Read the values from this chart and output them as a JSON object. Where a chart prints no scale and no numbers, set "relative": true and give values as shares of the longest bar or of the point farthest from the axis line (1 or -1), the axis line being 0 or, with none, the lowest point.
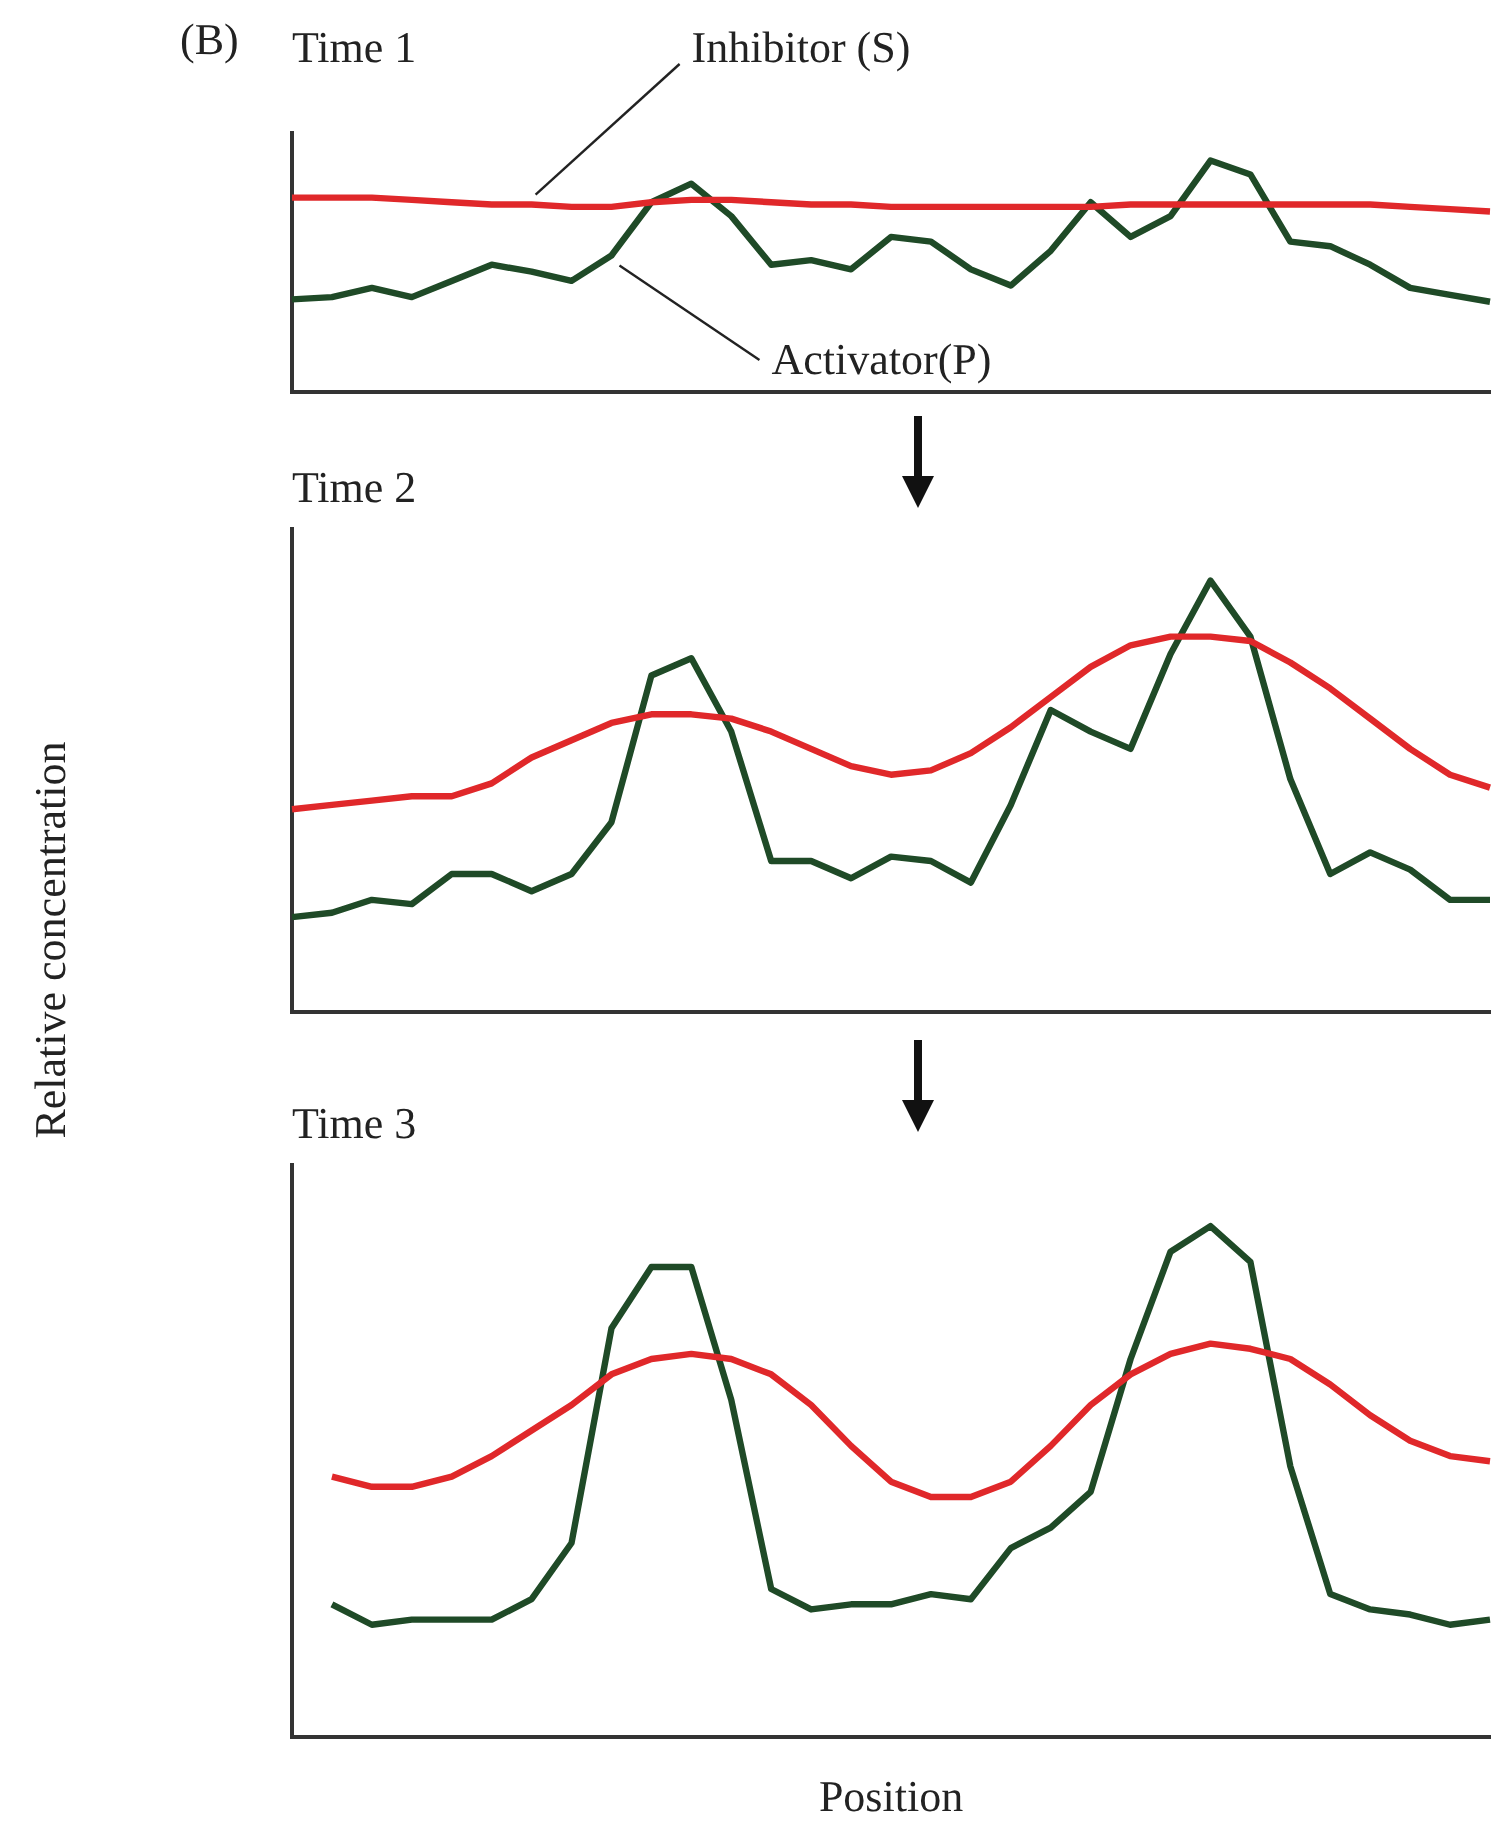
{
  "chart_data": [
    {
      "type": "line",
      "title": "Time 1",
      "annotations": [
        "(B)"
      ],
      "relative": true,
      "legend": false,
      "categories": [
        null,
        null,
        null,
        null,
        null,
        null,
        null,
        null,
        null,
        null,
        null,
        null,
        null,
        null,
        null,
        null,
        null,
        null,
        null,
        null,
        null,
        null,
        null,
        null,
        null,
        null,
        null,
        null,
        null,
        null,
        null
      ],
      "series": [
        {
          "name": "Inhibitor (S)",
          "color": "#e0282a",
          "values": [
            0.84,
            0.84,
            0.84,
            0.83,
            0.82,
            0.81,
            0.81,
            0.8,
            0.8,
            0.82,
            0.83,
            0.83,
            0.82,
            0.81,
            0.81,
            0.8,
            0.8,
            0.8,
            0.8,
            0.8,
            0.8,
            0.81,
            0.81,
            0.81,
            0.81,
            0.81,
            0.81,
            0.81,
            0.8,
            0.79,
            0.78
          ]
        },
        {
          "name": "Activator(P)",
          "color": "#1f4a27",
          "values": [
            0.4,
            0.41,
            0.45,
            0.41,
            0.48,
            0.55,
            0.52,
            0.48,
            0.59,
            0.82,
            0.9,
            0.76,
            0.55,
            0.57,
            0.53,
            0.67,
            0.65,
            0.53,
            0.46,
            0.61,
            0.82,
            0.67,
            0.76,
            1,
            0.94,
            0.65,
            0.63,
            0.55,
            0.45,
            0.42,
            0.39
          ]
        }
      ]
    },
    {
      "type": "line",
      "title": "Time 2",
      "ylabel": "Relative concentration",
      "relative": true,
      "legend": false,
      "categories": [
        null,
        null,
        null,
        null,
        null,
        null,
        null,
        null,
        null,
        null,
        null,
        null,
        null,
        null,
        null,
        null,
        null,
        null,
        null,
        null,
        null,
        null,
        null,
        null,
        null,
        null,
        null,
        null,
        null,
        null,
        null
      ],
      "series": [
        {
          "color": "#e0282a",
          "values": [
            0.47,
            0.48,
            0.49,
            0.5,
            0.5,
            0.53,
            0.59,
            0.63,
            0.67,
            0.69,
            0.69,
            0.68,
            0.65,
            0.61,
            0.57,
            0.55,
            0.56,
            0.6,
            0.66,
            0.73,
            0.8,
            0.85,
            0.87,
            0.87,
            0.86,
            0.81,
            0.75,
            0.68,
            0.61,
            0.55,
            0.52
          ]
        },
        {
          "color": "#1f4a27",
          "values": [
            0.22,
            0.23,
            0.26,
            0.25,
            0.32,
            0.32,
            0.28,
            0.32,
            0.44,
            0.78,
            0.82,
            0.65,
            0.35,
            0.35,
            0.31,
            0.36,
            0.35,
            0.3,
            0.48,
            0.7,
            0.65,
            0.61,
            0.83,
            1,
            0.87,
            0.54,
            0.32,
            0.37,
            0.33,
            0.26,
            0.26
          ]
        }
      ]
    },
    {
      "type": "line",
      "title": "Time 3",
      "xlabel": "Position",
      "relative": true,
      "legend": false,
      "categories": [
        null,
        null,
        null,
        null,
        null,
        null,
        null,
        null,
        null,
        null,
        null,
        null,
        null,
        null,
        null,
        null,
        null,
        null,
        null,
        null,
        null,
        null,
        null,
        null,
        null,
        null,
        null,
        null,
        null,
        null,
        null
      ],
      "series": [
        {
          "color": "#e0282a",
          "values": [
            null,
            0.51,
            0.49,
            0.49,
            0.51,
            0.55,
            0.6,
            0.65,
            0.71,
            0.74,
            0.75,
            0.74,
            0.71,
            0.65,
            0.57,
            0.5,
            0.47,
            0.47,
            0.5,
            0.57,
            0.65,
            0.71,
            0.75,
            0.77,
            0.76,
            0.74,
            0.69,
            0.63,
            0.58,
            0.55,
            0.54
          ]
        },
        {
          "color": "#1f4a27",
          "values": [
            null,
            0.26,
            0.22,
            0.23,
            0.23,
            0.23,
            0.27,
            0.38,
            0.8,
            0.92,
            0.92,
            0.66,
            0.29,
            0.25,
            0.26,
            0.26,
            0.28,
            0.27,
            0.37,
            0.41,
            0.48,
            0.74,
            0.95,
            1,
            0.93,
            0.53,
            0.28,
            0.25,
            0.24,
            0.22,
            0.23
          ]
        }
      ]
    }
  ]
}
